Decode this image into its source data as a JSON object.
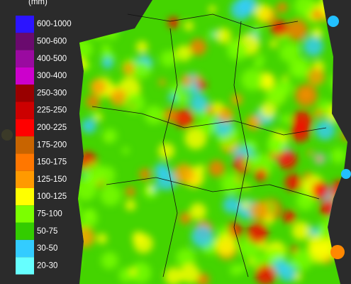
{
  "legend": {
    "unit": "(mm)",
    "items": [
      {
        "label": "600-1000",
        "color": "#2b14ff"
      },
      {
        "label": "500-600",
        "color": "#6a0a6e"
      },
      {
        "label": "400-500",
        "color": "#9a0aa0"
      },
      {
        "label": "300-400",
        "color": "#cc00cc"
      },
      {
        "label": "250-300",
        "color": "#990000"
      },
      {
        "label": "225-250",
        "color": "#cc0000"
      },
      {
        "label": "200-225",
        "color": "#ff0000"
      },
      {
        "label": "175-200",
        "color": "#c86400"
      },
      {
        "label": "150-175",
        "color": "#ff7700"
      },
      {
        "label": "125-150",
        "color": "#ff9a00"
      },
      {
        "label": "100-125",
        "color": "#ffff00"
      },
      {
        "label": "75-100",
        "color": "#7cff00"
      },
      {
        "label": "50-75",
        "color": "#33cc00"
      },
      {
        "label": "30-50",
        "color": "#33ccff"
      },
      {
        "label": "20-30",
        "color": "#66ffff"
      }
    ]
  }
}
